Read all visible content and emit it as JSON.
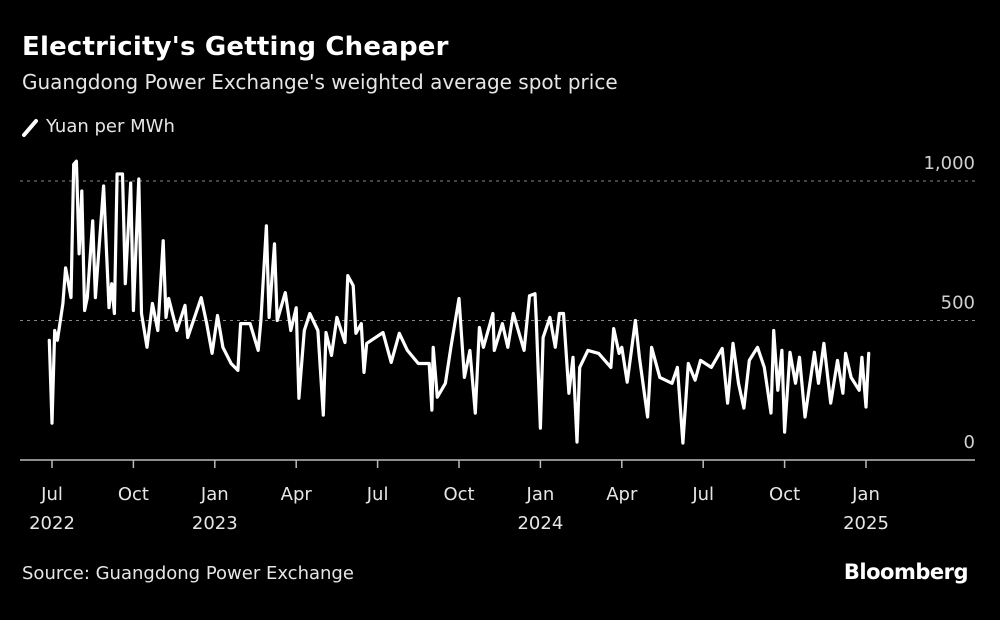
{
  "chart_data": {
    "type": "line",
    "title": "Electricity's Getting Cheaper",
    "subtitle": "Guangdong Power Exchange's weighted average spot price",
    "legend": [
      {
        "name": "Yuan per MWh",
        "color": "#ffffff"
      }
    ],
    "legend_placement": "top-left",
    "source": "Source: Guangdong Power Exchange",
    "x_unit": "months since Jul 2022",
    "xlim": [
      0,
      30
    ],
    "ylim": [
      0,
      1000
    ],
    "y_ticks": [
      {
        "value": 0,
        "label": "0"
      },
      {
        "value": 500,
        "label": "500"
      },
      {
        "value": 1000,
        "label": "1,000"
      }
    ],
    "x_ticks": [
      {
        "value": 0,
        "label": "Jul",
        "year": "2022"
      },
      {
        "value": 3,
        "label": "Oct",
        "year": ""
      },
      {
        "value": 6,
        "label": "Jan",
        "year": "2023"
      },
      {
        "value": 9,
        "label": "Apr",
        "year": ""
      },
      {
        "value": 12,
        "label": "Jul",
        "year": ""
      },
      {
        "value": 15,
        "label": "Oct",
        "year": ""
      },
      {
        "value": 18,
        "label": "Jan",
        "year": "2024"
      },
      {
        "value": 21,
        "label": "Apr",
        "year": ""
      },
      {
        "value": 24,
        "label": "Jul",
        "year": ""
      },
      {
        "value": 27,
        "label": "Oct",
        "year": ""
      },
      {
        "value": 30,
        "label": "Jan",
        "year": "2025"
      }
    ],
    "grid": "dotted horizontal",
    "series": [
      {
        "name": "Yuan per MWh",
        "points": [
          [
            -0.1,
            429
          ],
          [
            0.0,
            132
          ],
          [
            0.1,
            464
          ],
          [
            0.2,
            429
          ],
          [
            0.4,
            561
          ],
          [
            0.5,
            689
          ],
          [
            0.7,
            582
          ],
          [
            0.8,
            1060
          ],
          [
            0.9,
            1071
          ],
          [
            1.0,
            739
          ],
          [
            1.1,
            964
          ],
          [
            1.2,
            536
          ],
          [
            1.3,
            582
          ],
          [
            1.5,
            857
          ],
          [
            1.6,
            582
          ],
          [
            1.7,
            714
          ],
          [
            1.9,
            982
          ],
          [
            2.1,
            546
          ],
          [
            2.2,
            632
          ],
          [
            2.3,
            525
          ],
          [
            2.4,
            1025
          ],
          [
            2.6,
            1025
          ],
          [
            2.7,
            632
          ],
          [
            2.9,
            993
          ],
          [
            3.0,
            536
          ],
          [
            3.2,
            1007
          ],
          [
            3.3,
            525
          ],
          [
            3.5,
            404
          ],
          [
            3.7,
            561
          ],
          [
            3.9,
            464
          ],
          [
            4.1,
            786
          ],
          [
            4.2,
            511
          ],
          [
            4.3,
            579
          ],
          [
            4.6,
            464
          ],
          [
            4.9,
            554
          ],
          [
            5.0,
            439
          ],
          [
            5.5,
            582
          ],
          [
            5.7,
            489
          ],
          [
            5.9,
            382
          ],
          [
            6.1,
            518
          ],
          [
            6.3,
            404
          ],
          [
            6.6,
            346
          ],
          [
            6.85,
            321
          ],
          [
            6.95,
            489
          ],
          [
            7.3,
            489
          ],
          [
            7.6,
            393
          ],
          [
            7.7,
            500
          ],
          [
            7.9,
            839
          ],
          [
            8.0,
            511
          ],
          [
            8.2,
            775
          ],
          [
            8.3,
            500
          ],
          [
            8.6,
            600
          ],
          [
            8.8,
            464
          ],
          [
            9.0,
            546
          ],
          [
            9.1,
            221
          ],
          [
            9.3,
            464
          ],
          [
            9.5,
            525
          ],
          [
            9.8,
            464
          ],
          [
            10.0,
            161
          ],
          [
            10.1,
            457
          ],
          [
            10.3,
            375
          ],
          [
            10.5,
            511
          ],
          [
            10.8,
            421
          ],
          [
            10.9,
            661
          ],
          [
            11.1,
            625
          ],
          [
            11.2,
            454
          ],
          [
            11.4,
            489
          ],
          [
            11.5,
            314
          ],
          [
            11.6,
            418
          ],
          [
            12.2,
            457
          ],
          [
            12.5,
            350
          ],
          [
            12.8,
            454
          ],
          [
            13.1,
            393
          ],
          [
            13.5,
            346
          ],
          [
            13.9,
            346
          ],
          [
            14.0,
            179
          ],
          [
            14.05,
            404
          ],
          [
            14.2,
            225
          ],
          [
            14.5,
            275
          ],
          [
            14.7,
            404
          ],
          [
            15.0,
            579
          ],
          [
            15.2,
            296
          ],
          [
            15.4,
            393
          ],
          [
            15.6,
            168
          ],
          [
            15.75,
            475
          ],
          [
            15.9,
            404
          ],
          [
            16.25,
            525
          ],
          [
            16.3,
            393
          ],
          [
            16.6,
            489
          ],
          [
            16.8,
            404
          ],
          [
            17.0,
            525
          ],
          [
            17.4,
            393
          ],
          [
            17.6,
            589
          ],
          [
            17.8,
            596
          ],
          [
            17.85,
            500
          ],
          [
            18.0,
            114
          ],
          [
            18.1,
            439
          ],
          [
            18.35,
            511
          ],
          [
            18.55,
            404
          ],
          [
            18.7,
            525
          ],
          [
            18.85,
            525
          ],
          [
            19.05,
            239
          ],
          [
            19.2,
            368
          ],
          [
            19.35,
            64
          ],
          [
            19.45,
            332
          ],
          [
            19.75,
            393
          ],
          [
            20.15,
            382
          ],
          [
            20.6,
            332
          ],
          [
            20.7,
            471
          ],
          [
            20.9,
            382
          ],
          [
            21.0,
            404
          ],
          [
            21.2,
            279
          ],
          [
            21.5,
            500
          ],
          [
            21.65,
            368
          ],
          [
            21.95,
            154
          ],
          [
            22.1,
            404
          ],
          [
            22.4,
            296
          ],
          [
            22.85,
            275
          ],
          [
            23.05,
            332
          ],
          [
            23.25,
            61
          ],
          [
            23.45,
            346
          ],
          [
            23.7,
            286
          ],
          [
            23.9,
            357
          ],
          [
            24.3,
            332
          ],
          [
            24.7,
            400
          ],
          [
            24.9,
            204
          ],
          [
            25.1,
            418
          ],
          [
            25.3,
            275
          ],
          [
            25.5,
            186
          ],
          [
            25.7,
            357
          ],
          [
            26.0,
            404
          ],
          [
            26.25,
            332
          ],
          [
            26.5,
            168
          ],
          [
            26.6,
            464
          ],
          [
            26.75,
            250
          ],
          [
            26.9,
            393
          ],
          [
            27.0,
            100
          ],
          [
            27.2,
            386
          ],
          [
            27.4,
            275
          ],
          [
            27.55,
            368
          ],
          [
            27.75,
            154
          ],
          [
            28.1,
            386
          ],
          [
            28.25,
            275
          ],
          [
            28.45,
            418
          ],
          [
            28.7,
            204
          ],
          [
            28.95,
            357
          ],
          [
            29.15,
            239
          ],
          [
            29.25,
            382
          ],
          [
            29.45,
            296
          ],
          [
            29.75,
            250
          ],
          [
            29.85,
            368
          ],
          [
            30.0,
            190
          ],
          [
            30.1,
            382
          ]
        ]
      }
    ]
  },
  "brand": "Bloomberg"
}
